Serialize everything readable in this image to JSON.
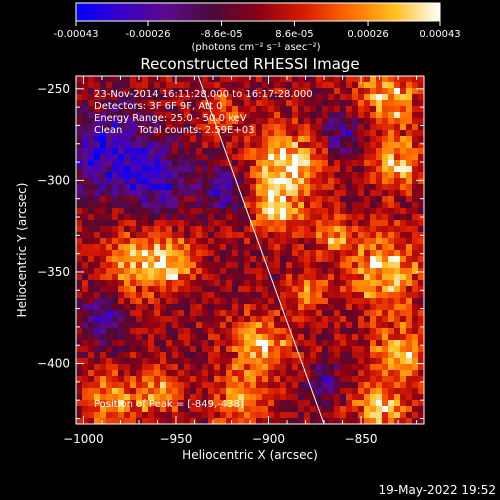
{
  "colorbar": {
    "tick_labels": [
      "-0.00043",
      "-0.00026",
      "-8.6e-05",
      "8.6e-05",
      "0.00026",
      "0.00043"
    ],
    "tick_values": [
      -0.00043,
      -0.00026,
      -8.6e-05,
      8.6e-05,
      0.00026,
      0.00043
    ],
    "range": [
      -0.00043,
      0.00043
    ],
    "unit_label": "(photons cm⁻² s⁻¹ asec⁻²)",
    "colormap": [
      "#0000ff",
      "#3a00c8",
      "#5b0a8a",
      "#4a0a3a",
      "#8a0015",
      "#d81a00",
      "#ff6a00",
      "#ffc020",
      "#ffffff"
    ]
  },
  "annotations": {
    "time_range": "23-Nov-2014 16:11:28.000 to 16:17:28.000",
    "detectors": "Detectors: 3F 6F 9F, Att 0",
    "energy_range": "Energy Range: 25.0 - 50.0 keV",
    "method": "Clean     Total counts: 2.59E+03",
    "peak": "Position of Peak = [-849,-438]"
  },
  "footer_timestamp": "19-May-2022 19:52",
  "chart_data": {
    "type": "heatmap",
    "title": "Reconstructed RHESSI Image",
    "xlabel": "Heliocentric X (arcsec)",
    "ylabel": "Heliocentric Y (arcsec)",
    "xlim": [
      -1004,
      -816
    ],
    "ylim": [
      -433,
      -243
    ],
    "x_ticks": [
      -1000,
      -950,
      -900,
      -850
    ],
    "y_ticks": [
      -250,
      -300,
      -350,
      -400
    ],
    "x_tick_labels": [
      "−1000",
      "−950",
      "−900",
      "−850"
    ],
    "y_tick_labels": [
      "−250",
      "−300",
      "−350",
      "−400"
    ],
    "peak_position": [
      -849,
      -438
    ],
    "limb_line": [
      [
        -938,
        -243
      ],
      [
        -870,
        -433
      ]
    ],
    "hot_regions": [
      {
        "x": -890,
        "y": -290,
        "r": 18,
        "v": 0.9
      },
      {
        "x": -895,
        "y": -315,
        "r": 14,
        "v": 0.75
      },
      {
        "x": -970,
        "y": -345,
        "r": 16,
        "v": 0.8
      },
      {
        "x": -950,
        "y": -345,
        "r": 12,
        "v": 0.7
      },
      {
        "x": -835,
        "y": -255,
        "r": 16,
        "v": 0.75
      },
      {
        "x": -830,
        "y": -290,
        "r": 14,
        "v": 0.7
      },
      {
        "x": -838,
        "y": -350,
        "r": 20,
        "v": 0.8
      },
      {
        "x": -828,
        "y": -395,
        "r": 16,
        "v": 0.7
      },
      {
        "x": -840,
        "y": -425,
        "r": 14,
        "v": 0.75
      },
      {
        "x": -905,
        "y": -390,
        "r": 16,
        "v": 0.75
      },
      {
        "x": -915,
        "y": -420,
        "r": 14,
        "v": 0.7
      },
      {
        "x": -985,
        "y": -420,
        "r": 14,
        "v": 0.6
      },
      {
        "x": -960,
        "y": -415,
        "r": 12,
        "v": 0.65
      },
      {
        "x": -880,
        "y": -360,
        "r": 10,
        "v": 0.6
      },
      {
        "x": -925,
        "y": -262,
        "r": 10,
        "v": 0.45
      },
      {
        "x": -865,
        "y": -330,
        "r": 10,
        "v": 0.55
      }
    ],
    "cold_regions": [
      {
        "x": -985,
        "y": -285,
        "r": 22,
        "v": -0.85
      },
      {
        "x": -960,
        "y": -300,
        "r": 16,
        "v": -0.7
      },
      {
        "x": -925,
        "y": -305,
        "r": 12,
        "v": -0.6
      },
      {
        "x": -860,
        "y": -275,
        "r": 12,
        "v": -0.55
      },
      {
        "x": -990,
        "y": -375,
        "r": 12,
        "v": -0.55
      },
      {
        "x": -870,
        "y": -410,
        "r": 10,
        "v": -0.5
      }
    ]
  }
}
